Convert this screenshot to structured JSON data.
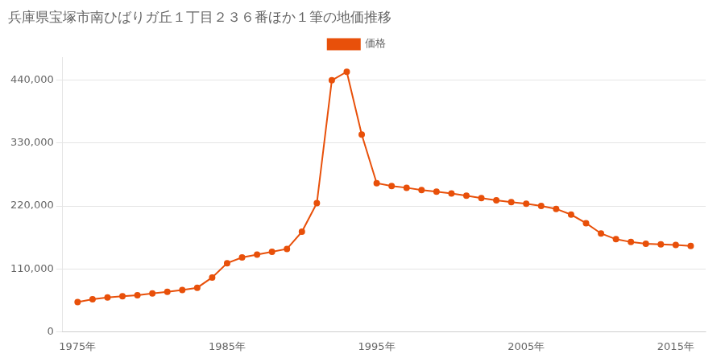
{
  "chart_data": {
    "type": "line",
    "title": "兵庫県宝塚市南ひばりガ丘１丁目２３６番ほか１筆の地価推移",
    "x": [
      1975,
      1976,
      1977,
      1978,
      1979,
      1980,
      1981,
      1982,
      1983,
      1984,
      1985,
      1986,
      1987,
      1988,
      1989,
      1990,
      1991,
      1992,
      1993,
      1994,
      1995,
      1996,
      1997,
      1998,
      1999,
      2000,
      2001,
      2002,
      2003,
      2004,
      2005,
      2006,
      2007,
      2008,
      2009,
      2010,
      2011,
      2012,
      2013,
      2014,
      2015,
      2016
    ],
    "series": [
      {
        "name": "価格",
        "color": "#e8500a",
        "marker": "circle",
        "line_style": "solid",
        "values": [
          52000,
          57000,
          60000,
          62000,
          64000,
          67000,
          70000,
          73000,
          77000,
          95000,
          120000,
          130000,
          135000,
          140000,
          145000,
          175000,
          225000,
          440000,
          455000,
          345000,
          260000,
          255000,
          252000,
          248000,
          245000,
          242000,
          238000,
          234000,
          230000,
          227000,
          224000,
          220000,
          215000,
          205000,
          190000,
          172000,
          162000,
          157000,
          154000,
          153000,
          152000,
          150000
        ]
      }
    ],
    "xlim": [
      1974,
      2017
    ],
    "xticks": [
      {
        "value": 1975,
        "label": "1975年"
      },
      {
        "value": 1985,
        "label": "1985年"
      },
      {
        "value": 1995,
        "label": "1995年"
      },
      {
        "value": 2005,
        "label": "2005年"
      },
      {
        "value": 2015,
        "label": "2015年"
      }
    ],
    "ylim": [
      0,
      480000
    ],
    "yticks": [
      0,
      {
        "value": 110000,
        "label": "110,000"
      },
      {
        "value": 220000,
        "label": "220,000"
      },
      {
        "value": 330000,
        "label": "330,000"
      },
      {
        "value": 440000,
        "label": "440,000"
      }
    ],
    "grid": "y",
    "legend": "top"
  }
}
